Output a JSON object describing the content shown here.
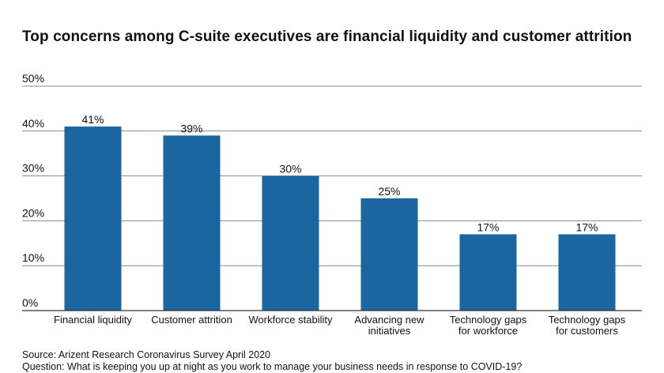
{
  "title": "Top concerns among C-suite executives are financial liquidity and customer attrition",
  "source_line": "Source: Arizent Research Coronavirus Survey April 2020",
  "question_line": "Question: What is keeping you up at night as you work to manage your business needs in response to COVID-19?",
  "colors": {
    "bar": "#1b65a1",
    "grid": "#888888",
    "axis": "#333333",
    "text": "#111111"
  },
  "chart_data": {
    "type": "bar",
    "title": "Top concerns among C-suite executives are financial liquidity and customer attrition",
    "xlabel": "",
    "ylabel": "",
    "categories": [
      [
        "Financial liquidity"
      ],
      [
        "Customer attrition"
      ],
      [
        "Workforce stability"
      ],
      [
        "Advancing new",
        "initiatives"
      ],
      [
        "Technology gaps",
        "for workforce"
      ],
      [
        "Technology gaps",
        "for customers"
      ]
    ],
    "values": [
      41,
      39,
      30,
      25,
      17,
      17
    ],
    "value_labels": [
      "41%",
      "39%",
      "30%",
      "25%",
      "17%",
      "17%"
    ],
    "ylim": [
      0,
      50
    ],
    "yticks": [
      0,
      10,
      20,
      30,
      40,
      50
    ],
    "ytick_labels": [
      "0%",
      "10%",
      "20%",
      "30%",
      "40%",
      "50%"
    ],
    "grid": true,
    "legend": "none"
  }
}
